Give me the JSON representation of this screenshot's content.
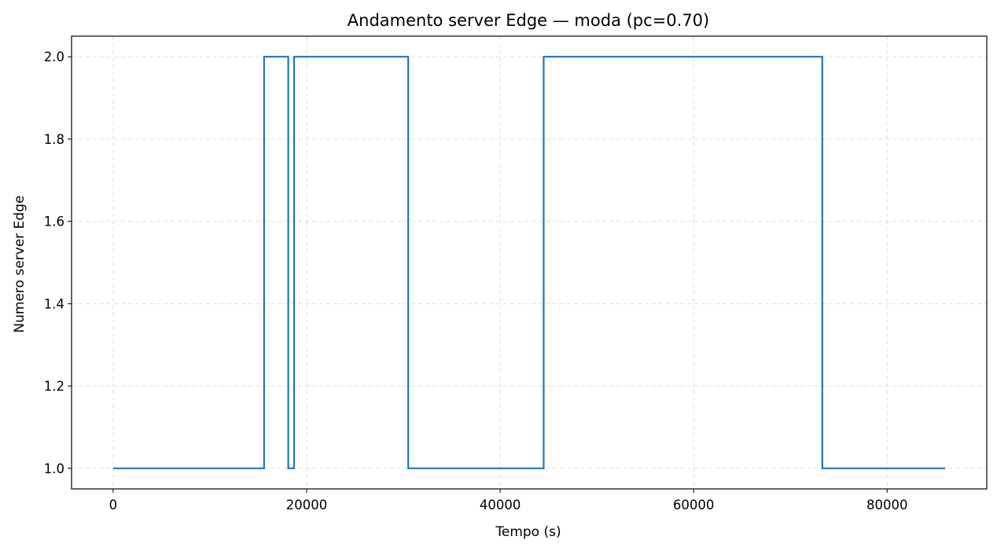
{
  "chart_data": {
    "type": "line",
    "step": "post",
    "title": "Andamento server Edge — moda (pc=0.70)",
    "xlabel": "Tempo (s)",
    "ylabel": "Numero server Edge",
    "xlim": [
      -4300,
      90300
    ],
    "ylim": [
      0.95,
      2.05
    ],
    "xticks": [
      0,
      20000,
      40000,
      60000,
      80000
    ],
    "yticks": [
      1.0,
      1.2,
      1.4,
      1.6,
      1.8,
      2.0
    ],
    "xtick_labels": [
      "0",
      "20000",
      "40000",
      "60000",
      "80000"
    ],
    "ytick_labels": [
      "1.0",
      "1.2",
      "1.4",
      "1.6",
      "1.8",
      "2.0"
    ],
    "grid": true,
    "color": "#1f77b4",
    "series": [
      {
        "x": [
          0,
          15600,
          18100,
          18700,
          30500,
          44500,
          73300,
          86000
        ],
        "y": [
          1,
          2,
          1,
          2,
          1,
          2,
          1,
          1
        ]
      }
    ]
  }
}
